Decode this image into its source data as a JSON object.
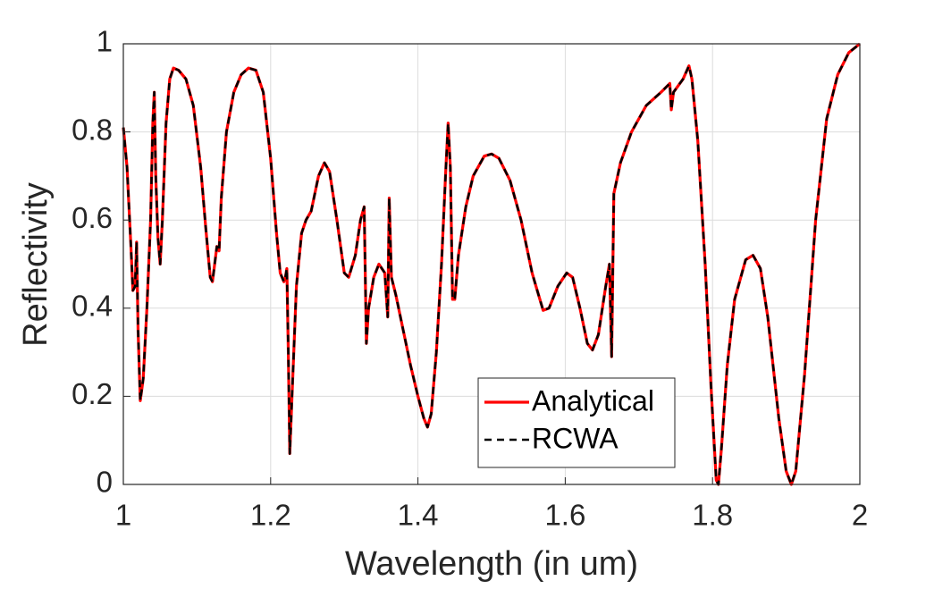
{
  "chart_data": {
    "type": "line",
    "x_label": "Wavelength (in um)",
    "y_label": "Reflectivity",
    "x": [
      1.0,
      1.005,
      1.01,
      1.013,
      1.016,
      1.018,
      1.02,
      1.023,
      1.027,
      1.032,
      1.037,
      1.04,
      1.042,
      1.044,
      1.047,
      1.05,
      1.053,
      1.058,
      1.063,
      1.068,
      1.075,
      1.085,
      1.095,
      1.105,
      1.112,
      1.118,
      1.121,
      1.124,
      1.127,
      1.13,
      1.133,
      1.14,
      1.15,
      1.16,
      1.17,
      1.18,
      1.19,
      1.2,
      1.208,
      1.213,
      1.218,
      1.22,
      1.222,
      1.224,
      1.226,
      1.229,
      1.235,
      1.242,
      1.248,
      1.255,
      1.265,
      1.273,
      1.28,
      1.29,
      1.3,
      1.306,
      1.315,
      1.322,
      1.327,
      1.33,
      1.333,
      1.34,
      1.347,
      1.355,
      1.359,
      1.361,
      1.364,
      1.37,
      1.38,
      1.39,
      1.4,
      1.408,
      1.413,
      1.418,
      1.425,
      1.432,
      1.438,
      1.441,
      1.444,
      1.447,
      1.45,
      1.455,
      1.465,
      1.475,
      1.49,
      1.5,
      1.51,
      1.525,
      1.54,
      1.555,
      1.562,
      1.57,
      1.578,
      1.59,
      1.602,
      1.61,
      1.62,
      1.63,
      1.637,
      1.645,
      1.655,
      1.66,
      1.663,
      1.666,
      1.675,
      1.69,
      1.71,
      1.73,
      1.742,
      1.744,
      1.747,
      1.76,
      1.768,
      1.772,
      1.78,
      1.79,
      1.798,
      1.805,
      1.808,
      1.812,
      1.82,
      1.83,
      1.845,
      1.855,
      1.865,
      1.875,
      1.89,
      1.9,
      1.907,
      1.913,
      1.925,
      1.94,
      1.955,
      1.97,
      1.985,
      2.0
    ],
    "series": [
      {
        "name": "Analytical",
        "color": "#ff0000",
        "dash": false,
        "values": [
          0.81,
          0.72,
          0.55,
          0.44,
          0.45,
          0.55,
          0.35,
          0.19,
          0.24,
          0.4,
          0.6,
          0.82,
          0.89,
          0.7,
          0.56,
          0.5,
          0.6,
          0.82,
          0.92,
          0.945,
          0.94,
          0.92,
          0.86,
          0.72,
          0.58,
          0.47,
          0.46,
          0.5,
          0.54,
          0.53,
          0.65,
          0.8,
          0.89,
          0.93,
          0.945,
          0.94,
          0.89,
          0.74,
          0.57,
          0.48,
          0.46,
          0.47,
          0.49,
          0.3,
          0.07,
          0.2,
          0.45,
          0.57,
          0.6,
          0.62,
          0.7,
          0.73,
          0.71,
          0.6,
          0.48,
          0.47,
          0.52,
          0.6,
          0.63,
          0.32,
          0.4,
          0.47,
          0.5,
          0.48,
          0.38,
          0.65,
          0.47,
          0.43,
          0.35,
          0.27,
          0.2,
          0.15,
          0.13,
          0.16,
          0.3,
          0.5,
          0.72,
          0.82,
          0.72,
          0.42,
          0.42,
          0.52,
          0.63,
          0.7,
          0.745,
          0.75,
          0.74,
          0.69,
          0.6,
          0.48,
          0.44,
          0.395,
          0.4,
          0.45,
          0.48,
          0.47,
          0.4,
          0.32,
          0.305,
          0.34,
          0.45,
          0.5,
          0.29,
          0.66,
          0.73,
          0.8,
          0.86,
          0.89,
          0.91,
          0.85,
          0.89,
          0.92,
          0.95,
          0.92,
          0.78,
          0.5,
          0.22,
          0.01,
          0.0,
          0.08,
          0.27,
          0.42,
          0.51,
          0.52,
          0.49,
          0.38,
          0.15,
          0.03,
          0.0,
          0.03,
          0.25,
          0.6,
          0.83,
          0.93,
          0.98,
          1.0
        ]
      },
      {
        "name": "RCWA",
        "color": "#000000",
        "dash": true,
        "values": [
          0.81,
          0.72,
          0.55,
          0.44,
          0.45,
          0.55,
          0.35,
          0.19,
          0.24,
          0.4,
          0.6,
          0.82,
          0.89,
          0.7,
          0.56,
          0.5,
          0.6,
          0.82,
          0.92,
          0.945,
          0.94,
          0.92,
          0.86,
          0.72,
          0.58,
          0.47,
          0.46,
          0.5,
          0.54,
          0.53,
          0.65,
          0.8,
          0.89,
          0.93,
          0.945,
          0.94,
          0.89,
          0.74,
          0.57,
          0.48,
          0.46,
          0.47,
          0.49,
          0.3,
          0.07,
          0.2,
          0.45,
          0.57,
          0.6,
          0.62,
          0.7,
          0.73,
          0.71,
          0.6,
          0.48,
          0.47,
          0.52,
          0.6,
          0.63,
          0.32,
          0.4,
          0.47,
          0.5,
          0.48,
          0.38,
          0.65,
          0.47,
          0.43,
          0.35,
          0.27,
          0.2,
          0.15,
          0.13,
          0.16,
          0.3,
          0.5,
          0.72,
          0.82,
          0.72,
          0.42,
          0.42,
          0.52,
          0.63,
          0.7,
          0.745,
          0.75,
          0.74,
          0.69,
          0.6,
          0.48,
          0.44,
          0.395,
          0.4,
          0.45,
          0.48,
          0.47,
          0.4,
          0.32,
          0.305,
          0.34,
          0.45,
          0.5,
          0.29,
          0.66,
          0.73,
          0.8,
          0.86,
          0.89,
          0.91,
          0.85,
          0.89,
          0.92,
          0.95,
          0.92,
          0.78,
          0.5,
          0.22,
          0.01,
          0.0,
          0.08,
          0.27,
          0.42,
          0.51,
          0.52,
          0.49,
          0.38,
          0.15,
          0.03,
          0.0,
          0.03,
          0.25,
          0.6,
          0.83,
          0.93,
          0.98,
          1.0
        ]
      }
    ],
    "xlim": [
      1,
      2
    ],
    "xticks": [
      1,
      1.2,
      1.4,
      1.6,
      1.8,
      2
    ],
    "ylim": [
      0,
      1
    ],
    "yticks": [
      0,
      0.2,
      0.4,
      0.6,
      0.8,
      1
    ],
    "grid": true,
    "legend": "lower center"
  }
}
